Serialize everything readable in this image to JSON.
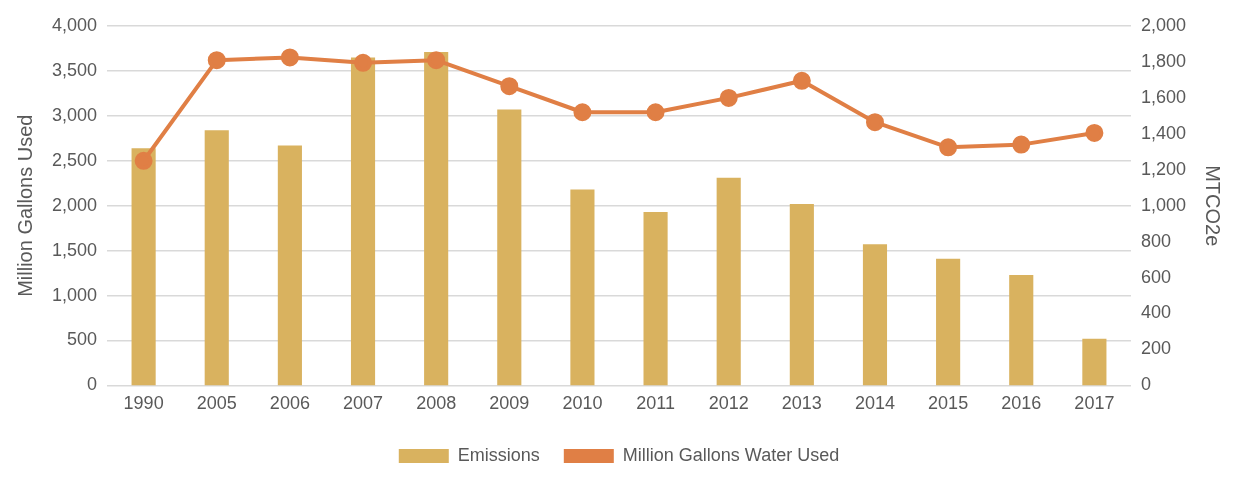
{
  "chart_data": {
    "type": "bar",
    "ylabel": "Million Gallons Used",
    "y2label": "MTCO2e",
    "categories": [
      "1990",
      "2005",
      "2006",
      "2007",
      "2008",
      "2009",
      "2010",
      "2011",
      "2012",
      "2013",
      "2014",
      "2015",
      "2016",
      "2017"
    ],
    "series": [
      {
        "name": "Emissions",
        "axis": "y2",
        "color": "#d9b25f",
        "values": [
          1320,
          1420,
          1335,
          1825,
          1855,
          1535,
          1090,
          965,
          1155,
          1010,
          785,
          705,
          615,
          260
        ]
      },
      {
        "name": "Million Gallons Water Used",
        "type": "line",
        "color": "#e07f45",
        "values": [
          2500,
          3620,
          3650,
          3590,
          3620,
          3330,
          3040,
          3040,
          3200,
          3390,
          2930,
          2650,
          2680,
          2810
        ]
      }
    ],
    "ylim": [
      0,
      4000
    ],
    "yticks": [
      0,
      500,
      {
        "value": 1000,
        "label": "1,000"
      },
      {
        "value": 1500,
        "label": "1,500"
      },
      {
        "value": 2000,
        "label": "2,000"
      },
      {
        "value": 2500,
        "label": "2,500"
      },
      {
        "value": 3000,
        "label": "3,000"
      },
      {
        "value": 3500,
        "label": "3,500"
      },
      {
        "value": 4000,
        "label": "4,000"
      }
    ],
    "y2lim": [
      0,
      2000
    ],
    "y2ticks": [
      0,
      200,
      400,
      600,
      800,
      {
        "value": 1000,
        "label": "1,000"
      },
      {
        "value": 1200,
        "label": "1,200"
      },
      {
        "value": 1400,
        "label": "1,400"
      },
      {
        "value": 1600,
        "label": "1,600"
      },
      {
        "value": 1800,
        "label": "1,800"
      },
      {
        "value": 2000,
        "label": "2,000"
      }
    ],
    "grid": "y",
    "legend": "bottom",
    "marker": "circle",
    "line_style": "solid"
  }
}
